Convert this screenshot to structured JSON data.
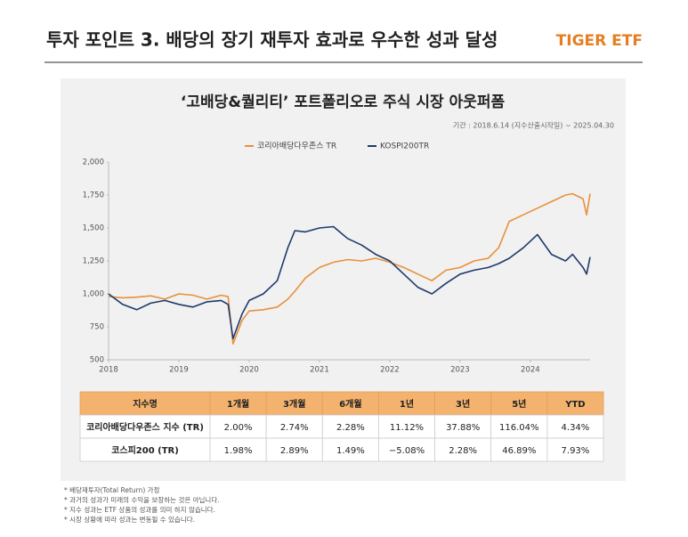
{
  "header": {
    "title": "투자 포인트 3. 배당의 장기 재투자 효과로 우수한 성과 달성",
    "logo": "TIGER ETF"
  },
  "chart_data": {
    "type": "line",
    "title": "‘고배당&퀄리티’ 포트폴리오로 주식 시장 아웃퍼폼",
    "subtitle": "기간 : 2018.6.14 (지수산출시작일) ~ 2025.04.30",
    "x": [
      2018.0,
      2018.2,
      2018.4,
      2018.6,
      2018.8,
      2019.0,
      2019.2,
      2019.4,
      2019.6,
      2019.7,
      2019.77,
      2019.9,
      2020.0,
      2020.2,
      2020.4,
      2020.55,
      2020.65,
      2020.8,
      2021.0,
      2021.2,
      2021.4,
      2021.6,
      2021.8,
      2022.0,
      2022.2,
      2022.4,
      2022.6,
      2022.8,
      2023.0,
      2023.2,
      2023.4,
      2023.55,
      2023.7,
      2023.9,
      2024.1,
      2024.3,
      2024.5,
      2024.6,
      2024.75,
      2024.8,
      2024.85
    ],
    "series": [
      {
        "name": "코리아배당다우존스 TR",
        "color": "#e8913a",
        "values": [
          980,
          970,
          975,
          985,
          960,
          1000,
          990,
          960,
          990,
          980,
          620,
          800,
          870,
          880,
          900,
          960,
          1020,
          1120,
          1200,
          1240,
          1260,
          1250,
          1270,
          1240,
          1200,
          1150,
          1100,
          1180,
          1200,
          1250,
          1270,
          1350,
          1550,
          1600,
          1650,
          1700,
          1750,
          1760,
          1720,
          1600,
          1760
        ]
      },
      {
        "name": "KOSPI200TR",
        "color": "#1f3a6b",
        "values": [
          1000,
          920,
          880,
          930,
          950,
          920,
          900,
          940,
          950,
          920,
          660,
          850,
          950,
          1000,
          1100,
          1350,
          1480,
          1470,
          1500,
          1510,
          1420,
          1370,
          1300,
          1250,
          1150,
          1050,
          1000,
          1080,
          1150,
          1180,
          1200,
          1230,
          1270,
          1350,
          1450,
          1300,
          1250,
          1300,
          1200,
          1150,
          1280
        ]
      }
    ],
    "xlim": [
      2018,
      2024.85
    ],
    "xticks": [
      2018,
      2019,
      2020,
      2021,
      2022,
      2023,
      2024
    ],
    "ylim": [
      500,
      2000
    ],
    "yticks": [
      500,
      750,
      {
        "value": 1000,
        "label": "1,000"
      },
      {
        "value": 1250,
        "label": "1,250"
      },
      {
        "value": 1500,
        "label": "1,500"
      },
      {
        "value": 1750,
        "label": "1,750"
      },
      {
        "value": 2000,
        "label": "2,000"
      }
    ],
    "grid": false,
    "legend": "top"
  },
  "table": {
    "header": [
      "지수명",
      "1개월",
      "3개월",
      "6개월",
      "1년",
      "3년",
      "5년",
      "YTD"
    ],
    "rows": [
      [
        "코리아배당다우존스 지수 (TR)",
        "2.00%",
        "2.74%",
        "2.28%",
        "11.12%",
        "37.88%",
        "116.04%",
        "4.34%"
      ],
      [
        "코스피200 (TR)",
        "1.98%",
        "2.89%",
        "1.49%",
        "−5.08%",
        "2.28%",
        "46.89%",
        "7.93%"
      ]
    ]
  },
  "footnotes": [
    "* 배당재투자(Total Return) 가정",
    "* 과거의 성과가 미래의 수익을 보장하는 것은 아닙니다.",
    "* 지수 성과는 ETF 상품의 성과를 의미 하지 않습니다.",
    "* 시장 상황에 따라 성과는 변동될 수 있습니다."
  ]
}
